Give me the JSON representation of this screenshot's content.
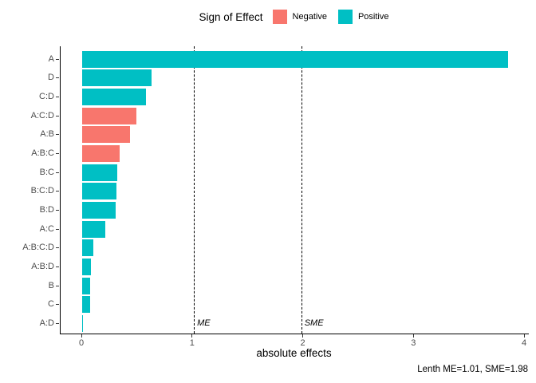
{
  "legend": {
    "title": "Sign of Effect",
    "items": [
      {
        "label": "Negative",
        "color": "#F8766D"
      },
      {
        "label": "Positive",
        "color": "#00BFC4"
      }
    ]
  },
  "axes": {
    "x_title": "absolute effects"
  },
  "caption": "Lenth ME=1.01, SME=1.98",
  "chart_data": {
    "type": "bar",
    "orientation": "horizontal",
    "title": "",
    "xlabel": "absolute effects",
    "ylabel": "",
    "xlim": [
      0,
      4
    ],
    "xticks": [
      0,
      1,
      2,
      3,
      4
    ],
    "grid": false,
    "legend_position": "top",
    "categories": [
      "A",
      "D",
      "C:D",
      "A:C:D",
      "A:B",
      "A:B:C",
      "B:C",
      "B:C:D",
      "B:D",
      "A:C",
      "A:B:C:D",
      "A:B:D",
      "B",
      "C",
      "A:D"
    ],
    "values": [
      3.85,
      0.63,
      0.58,
      0.49,
      0.43,
      0.34,
      0.32,
      0.31,
      0.3,
      0.21,
      0.1,
      0.08,
      0.075,
      0.07,
      0.005
    ],
    "signs": [
      "Positive",
      "Positive",
      "Positive",
      "Negative",
      "Negative",
      "Negative",
      "Positive",
      "Positive",
      "Positive",
      "Positive",
      "Positive",
      "Positive",
      "Positive",
      "Positive",
      "Positive"
    ],
    "reference_lines": [
      {
        "label": "ME",
        "x": 1.01
      },
      {
        "label": "SME",
        "x": 1.98
      }
    ]
  }
}
